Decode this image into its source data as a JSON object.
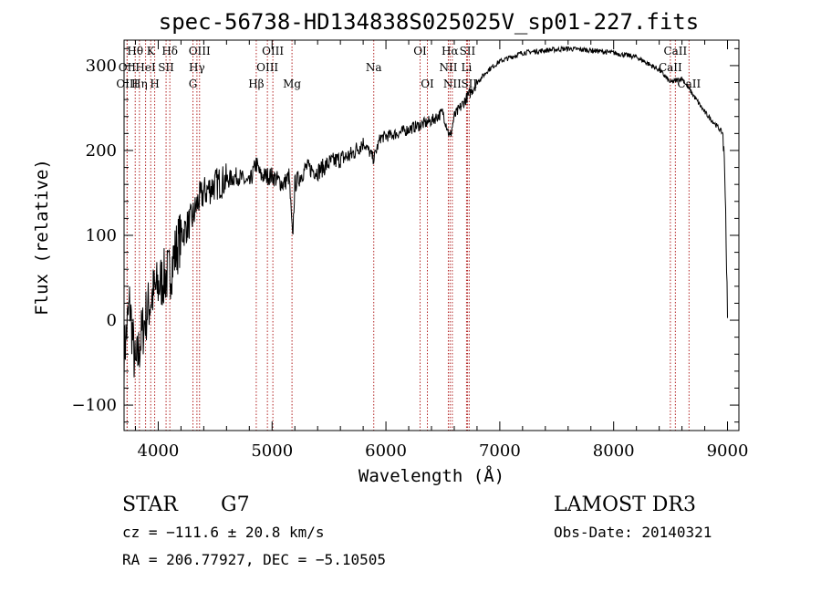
{
  "chart_data": {
    "type": "line",
    "title": "spec-56738-HD134838S025025V_sp01-227.fits",
    "xlabel": "Wavelength (Å)",
    "ylabel": "Flux (relative)",
    "xlim": [
      3700,
      9100
    ],
    "ylim": [
      -130,
      330
    ],
    "xticks": [
      4000,
      5000,
      6000,
      7000,
      8000,
      9000
    ],
    "yticks": [
      -100,
      0,
      100,
      200,
      300
    ],
    "series": [
      {
        "name": "spectrum",
        "x": [
          3700,
          3750,
          3800,
          3850,
          3900,
          3950,
          4000,
          4050,
          4100,
          4150,
          4200,
          4250,
          4300,
          4350,
          4400,
          4450,
          4500,
          4600,
          4700,
          4800,
          4860,
          4900,
          5000,
          5100,
          5150,
          5180,
          5200,
          5300,
          5400,
          5500,
          5600,
          5700,
          5800,
          5893,
          5950,
          6100,
          6200,
          6300,
          6400,
          6500,
          6563,
          6600,
          6700,
          6800,
          6900,
          7000,
          7100,
          7200,
          7400,
          7600,
          7800,
          8000,
          8200,
          8400,
          8500,
          8600,
          8700,
          8800,
          8900,
          8960,
          8980,
          9000
        ],
        "y": [
          -40,
          20,
          -60,
          -20,
          10,
          30,
          40,
          50,
          55,
          80,
          100,
          110,
          120,
          140,
          150,
          155,
          160,
          165,
          170,
          160,
          185,
          170,
          170,
          160,
          170,
          95,
          160,
          180,
          175,
          185,
          190,
          195,
          210,
          190,
          215,
          220,
          225,
          230,
          235,
          245,
          215,
          240,
          260,
          280,
          295,
          305,
          310,
          315,
          318,
          320,
          318,
          315,
          310,
          295,
          280,
          285,
          265,
          245,
          230,
          220,
          160,
          0
        ]
      }
    ],
    "lines": [
      {
        "label": "Hθ",
        "x": 3798,
        "row": 0
      },
      {
        "label": "OII",
        "x": 3727,
        "row": 1
      },
      {
        "label": "OIII",
        "x": 3727,
        "row": 2
      },
      {
        "label": "Hη",
        "x": 3835,
        "row": 2
      },
      {
        "label": "HeI",
        "x": 3889,
        "row": 1
      },
      {
        "label": "K",
        "x": 3934,
        "row": 0
      },
      {
        "label": "H",
        "x": 3969,
        "row": 2
      },
      {
        "label": "SII",
        "x": 4069,
        "row": 1
      },
      {
        "label": "Hδ",
        "x": 4102,
        "row": 0
      },
      {
        "label": "OIII",
        "x": 4363,
        "row": 0
      },
      {
        "label": "Hγ",
        "x": 4340,
        "row": 1
      },
      {
        "label": "G",
        "x": 4305,
        "row": 2
      },
      {
        "label": "Hβ",
        "x": 4861,
        "row": 2
      },
      {
        "label": "OIII",
        "x": 5007,
        "row": 0
      },
      {
        "label": "OIII",
        "x": 4959,
        "row": 1
      },
      {
        "label": "Mg",
        "x": 5175,
        "row": 2
      },
      {
        "label": "Na",
        "x": 5893,
        "row": 1
      },
      {
        "label": "OI",
        "x": 6300,
        "row": 0
      },
      {
        "label": "OI",
        "x": 6364,
        "row": 2
      },
      {
        "label": "Hα",
        "x": 6563,
        "row": 0
      },
      {
        "label": "SII",
        "x": 6716,
        "row": 0
      },
      {
        "label": "NII",
        "x": 6548,
        "row": 1
      },
      {
        "label": "NII",
        "x": 6583,
        "row": 2
      },
      {
        "label": "Li",
        "x": 6708,
        "row": 1
      },
      {
        "label": "SII",
        "x": 6731,
        "row": 2
      },
      {
        "label": "CaII",
        "x": 8542,
        "row": 0
      },
      {
        "label": "CaII",
        "x": 8498,
        "row": 1
      },
      {
        "label": "CaII",
        "x": 8662,
        "row": 2
      }
    ]
  },
  "info": {
    "class_label": "STAR",
    "subclass": "G7",
    "survey": "LAMOST DR3",
    "cz": "cz = −111.6 ± 20.8 km/s",
    "obs_date": "Obs-Date: 20140321",
    "coords": "RA = 206.77927, DEC =  −5.10505"
  },
  "colors": {
    "axes": "#000000",
    "spectrum": "#000000",
    "line_marker": "#b22222"
  }
}
